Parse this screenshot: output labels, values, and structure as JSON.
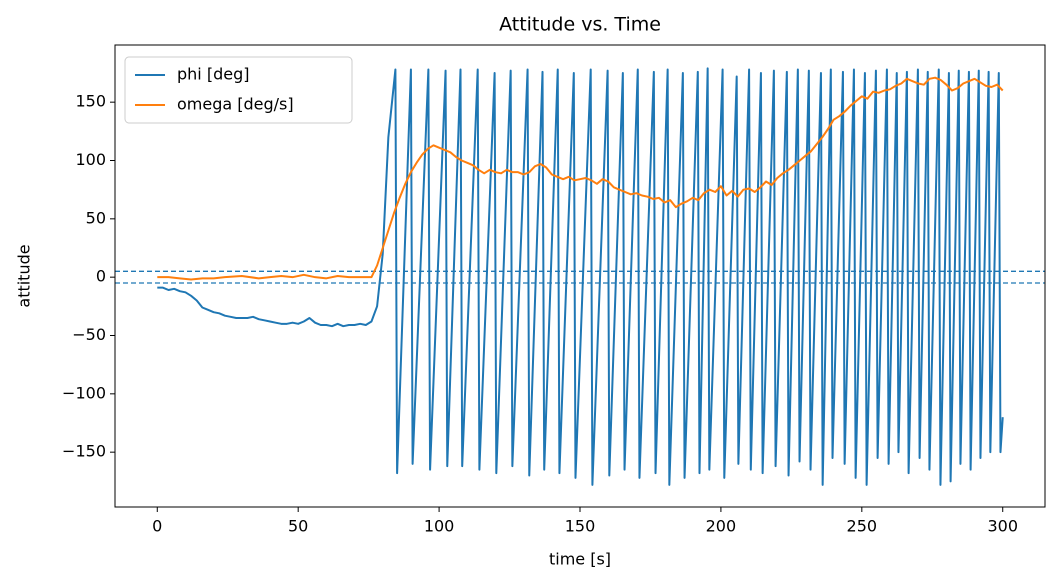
{
  "chart_data": {
    "type": "line",
    "title": "Attitude vs. Time",
    "xlabel": "time [s]",
    "ylabel": "attitude",
    "xlim": [
      -15,
      315
    ],
    "ylim": [
      -197,
      199
    ],
    "xticks": [
      0,
      50,
      100,
      150,
      200,
      250,
      300
    ],
    "yticks": [
      {
        "value": -150,
        "label": "−150"
      },
      {
        "value": -100,
        "label": "−100"
      },
      {
        "value": -50,
        "label": "−50"
      },
      0,
      50,
      100,
      150
    ],
    "hlines": [
      5,
      -5
    ],
    "hline_color": "#1f77b4",
    "legend": "upper left",
    "series": [
      {
        "name": "phi [deg]",
        "color": "#1f77b4",
        "x": [
          0,
          2,
          4,
          6,
          8,
          10,
          12,
          14,
          16,
          18,
          20,
          22,
          24,
          26,
          28,
          30,
          32,
          34,
          36,
          38,
          40,
          42,
          44,
          46,
          48,
          50,
          52,
          54,
          56,
          58,
          60,
          62,
          64,
          66,
          68,
          70,
          72,
          74,
          76,
          78,
          80,
          82,
          84.5,
          85.1,
          90,
          90.6,
          96.2,
          96.8,
          102.3,
          102.9,
          107.6,
          108.2,
          113.7,
          114.3,
          119.7,
          120.3,
          125.4,
          126,
          131.4,
          132,
          136.7,
          137.3,
          142.1,
          142.7,
          147.8,
          148.4,
          153.8,
          154.4,
          159.8,
          160.4,
          165.2,
          165.8,
          170.5,
          171.1,
          176.2,
          176.8,
          181.1,
          181.7,
          186.5,
          187.1,
          191.8,
          192.4,
          195.3,
          195.9,
          200.6,
          201.2,
          205.6,
          206.2,
          210,
          210.6,
          214.2,
          214.8,
          218.8,
          219.4,
          223.4,
          224,
          227.3,
          227.9,
          231.2,
          231.8,
          235.5,
          236.1,
          239,
          239.6,
          243.3,
          243.9,
          247.2,
          247.8,
          251.1,
          251.7,
          255,
          255.6,
          258.9,
          259.5,
          262.4,
          263,
          266,
          266.6,
          269.9,
          270.5,
          273.4,
          274,
          277.3,
          277.9,
          280.9,
          281.5,
          284.4,
          285,
          288,
          288.6,
          291.5,
          292.1,
          295,
          295.6,
          298.6,
          299.2,
          300
        ],
        "values": [
          -9,
          -9,
          -11,
          -10,
          -12,
          -13,
          -16,
          -20,
          -26,
          -28,
          -30,
          -31,
          -33,
          -34,
          -35,
          -35,
          -35,
          -34,
          -36,
          -37,
          -38,
          -39,
          -40,
          -40,
          -39,
          -40,
          -38,
          -35,
          -39,
          -41,
          -41,
          -42,
          -40,
          -42,
          -41,
          -41,
          -40,
          -41,
          -38,
          -25,
          20,
          120,
          178,
          -168,
          178,
          -160,
          178,
          -165,
          177,
          -162,
          178,
          -162,
          178,
          -165,
          175,
          -168,
          177,
          -162,
          178,
          -170,
          176,
          -165,
          178,
          -168,
          175,
          -172,
          178,
          -178,
          177,
          -170,
          175,
          -165,
          178,
          -172,
          176,
          -168,
          178,
          -178,
          175,
          -172,
          176,
          -168,
          179,
          -165,
          178,
          -172,
          172,
          -160,
          178,
          -165,
          175,
          -168,
          177,
          -162,
          176,
          -170,
          178,
          -158,
          177,
          -165,
          175,
          -178,
          178,
          -155,
          176,
          -160,
          178,
          -172,
          175,
          -178,
          177,
          -155,
          178,
          -160,
          175,
          -150,
          176,
          -168,
          178,
          -155,
          176,
          -165,
          178,
          -178,
          175,
          -175,
          177,
          -160,
          176,
          -165,
          177,
          -155,
          176,
          -150,
          175,
          -150,
          -120
        ]
      },
      {
        "name": "omega [deg/s]",
        "color": "#ff7f0e",
        "x": [
          0,
          4,
          8,
          12,
          16,
          20,
          24,
          30,
          36,
          40,
          44,
          48,
          52,
          56,
          60,
          64,
          68,
          72,
          76,
          78,
          80,
          82,
          84,
          86,
          88,
          90,
          92,
          94,
          96,
          98,
          100,
          102,
          104,
          106,
          108,
          110,
          112,
          114,
          116,
          118,
          120,
          122,
          124,
          126,
          128,
          130,
          132,
          134,
          136,
          138,
          140,
          142,
          144,
          146,
          148,
          150,
          152,
          154,
          156,
          158,
          160,
          162,
          164,
          166,
          168,
          170,
          172,
          174,
          176,
          178,
          180,
          182,
          184,
          186,
          188,
          190,
          192,
          194,
          196,
          198,
          200,
          202,
          204,
          206,
          208,
          210,
          212,
          214,
          216,
          218,
          220,
          222,
          224,
          226,
          228,
          230,
          232,
          234,
          236,
          238,
          240,
          242,
          244,
          246,
          248,
          250,
          252,
          254,
          256,
          258,
          260,
          262,
          264,
          266,
          268,
          270,
          272,
          274,
          276,
          278,
          280,
          282,
          284,
          286,
          288,
          290,
          292,
          294,
          296,
          298,
          300
        ],
        "values": [
          0,
          0,
          -1,
          -2,
          -1,
          -1,
          0,
          1,
          -1,
          0,
          1,
          0,
          2,
          0,
          -1,
          1,
          0,
          0,
          0,
          10,
          25,
          40,
          55,
          68,
          80,
          90,
          98,
          105,
          110,
          113,
          111,
          109,
          107,
          103,
          100,
          98,
          96,
          92,
          89,
          92,
          90,
          89,
          92,
          90,
          90,
          88,
          90,
          95,
          97,
          94,
          88,
          86,
          84,
          86,
          83,
          84,
          85,
          83,
          80,
          84,
          82,
          77,
          75,
          73,
          71,
          72,
          70,
          69,
          67,
          68,
          64,
          66,
          60,
          63,
          65,
          68,
          66,
          72,
          75,
          73,
          78,
          70,
          74,
          69,
          75,
          76,
          73,
          77,
          82,
          79,
          85,
          89,
          92,
          96,
          100,
          104,
          108,
          114,
          120,
          127,
          135,
          138,
          142,
          147,
          151,
          155,
          153,
          159,
          158,
          160,
          161,
          164,
          166,
          170,
          168,
          166,
          165,
          170,
          171,
          169,
          165,
          160,
          162,
          166,
          168,
          170,
          167,
          164,
          163,
          165,
          160
        ]
      }
    ]
  }
}
